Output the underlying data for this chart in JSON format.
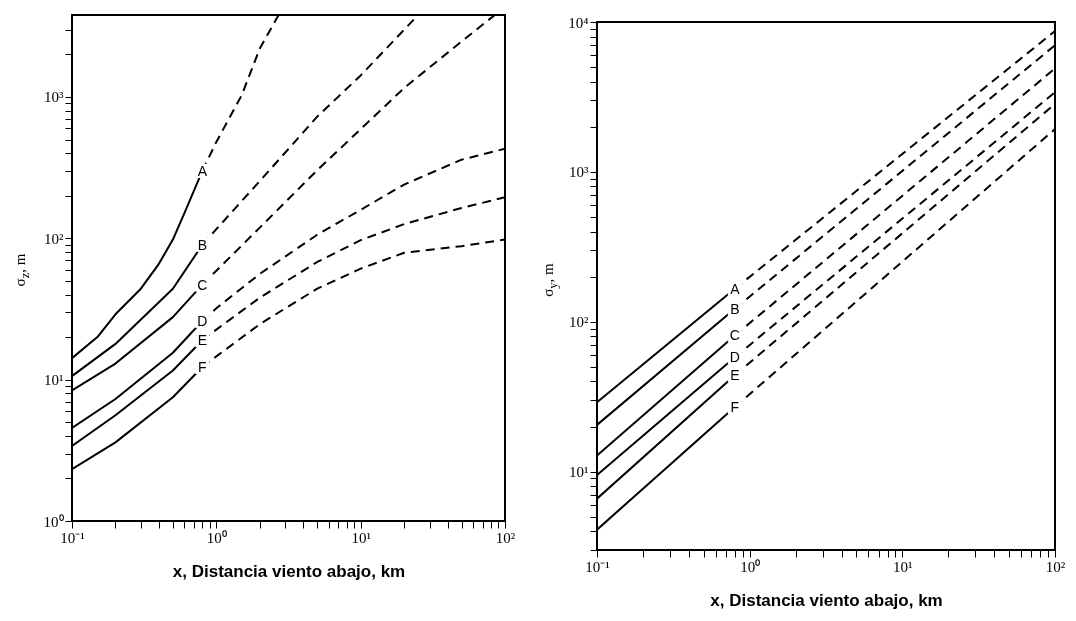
{
  "chart_data": [
    {
      "type": "line",
      "ylabel": "σ$_{z}$, m",
      "xlabel": "x, Distancia viento abajo, km",
      "log": "xy",
      "xlim": [
        0.1,
        100
      ],
      "ylim": [
        1,
        3800
      ],
      "xticks": [
        {
          "value": 0.1,
          "label": "10⁻¹"
        },
        {
          "value": 0.2,
          "label": null
        },
        {
          "value": 0.3,
          "label": null
        },
        {
          "value": 0.4,
          "label": null
        },
        {
          "value": 0.5,
          "label": null
        },
        {
          "value": 0.6,
          "label": null
        },
        {
          "value": 0.7,
          "label": null
        },
        {
          "value": 0.8,
          "label": null
        },
        {
          "value": 0.9,
          "label": null
        },
        {
          "value": 1,
          "label": "10⁰"
        },
        {
          "value": 2,
          "label": null
        },
        {
          "value": 3,
          "label": null
        },
        {
          "value": 4,
          "label": null
        },
        {
          "value": 5,
          "label": null
        },
        {
          "value": 6,
          "label": null
        },
        {
          "value": 7,
          "label": null
        },
        {
          "value": 8,
          "label": null
        },
        {
          "value": 9,
          "label": null
        },
        {
          "value": 10,
          "label": "10¹"
        },
        {
          "value": 20,
          "label": null
        },
        {
          "value": 30,
          "label": null
        },
        {
          "value": 40,
          "label": null
        },
        {
          "value": 50,
          "label": null
        },
        {
          "value": 60,
          "label": null
        },
        {
          "value": 70,
          "label": null
        },
        {
          "value": 80,
          "label": null
        },
        {
          "value": 90,
          "label": null
        },
        {
          "value": 100,
          "label": "10²"
        }
      ],
      "yticks": [
        {
          "value": 1,
          "label": "10⁰"
        },
        {
          "value": 2,
          "label": null
        },
        {
          "value": 3,
          "label": null
        },
        {
          "value": 4,
          "label": null
        },
        {
          "value": 5,
          "label": null
        },
        {
          "value": 6,
          "label": null
        },
        {
          "value": 7,
          "label": null
        },
        {
          "value": 8,
          "label": null
        },
        {
          "value": 9,
          "label": null
        },
        {
          "value": 10,
          "label": "10¹"
        },
        {
          "value": 20,
          "label": null
        },
        {
          "value": 30,
          "label": null
        },
        {
          "value": 40,
          "label": null
        },
        {
          "value": 50,
          "label": null
        },
        {
          "value": 60,
          "label": null
        },
        {
          "value": 70,
          "label": null
        },
        {
          "value": 80,
          "label": null
        },
        {
          "value": 90,
          "label": null
        },
        {
          "value": 100,
          "label": "10²"
        },
        {
          "value": 200,
          "label": null
        },
        {
          "value": 300,
          "label": null
        },
        {
          "value": 400,
          "label": null
        },
        {
          "value": 500,
          "label": null
        },
        {
          "value": 600,
          "label": null
        },
        {
          "value": 700,
          "label": null
        },
        {
          "value": 800,
          "label": null
        },
        {
          "value": 900,
          "label": null
        },
        {
          "value": 1000,
          "label": "10³"
        },
        {
          "value": 2000,
          "label": null
        },
        {
          "value": 3000,
          "label": null
        }
      ],
      "series": [
        {
          "color": "#000000",
          "line_style": "solid",
          "x": [
            0.1,
            0.15,
            0.2,
            0.3,
            0.4,
            0.5,
            0.6,
            0.8
          ],
          "values": [
            14.2,
            20,
            29,
            44,
            66,
            98,
            150,
            300
          ]
        },
        {
          "name": "A",
          "color": "#000000",
          "line_style": "dashed",
          "x": [
            0.8,
            1,
            1.5,
            2,
            2.7
          ],
          "values": [
            300,
            480,
            1030,
            2200,
            3800
          ]
        },
        {
          "color": "#000000",
          "line_style": "solid",
          "x": [
            0.1,
            0.2,
            0.5,
            0.8
          ],
          "values": [
            10.6,
            17.9,
            44,
            90
          ]
        },
        {
          "name": "B",
          "color": "#000000",
          "line_style": "dashed",
          "x": [
            0.8,
            1,
            2,
            5,
            10,
            25
          ],
          "values": [
            90,
            116,
            254,
            725,
            1420,
            3800
          ]
        },
        {
          "color": "#000000",
          "line_style": "solid",
          "x": [
            0.1,
            0.2,
            0.5,
            0.8
          ],
          "values": [
            8.4,
            13,
            27.7,
            47
          ]
        },
        {
          "name": "C",
          "color": "#000000",
          "line_style": "dashed",
          "x": [
            0.8,
            1,
            2,
            5,
            10,
            20,
            50,
            85
          ],
          "values": [
            47,
            59,
            119,
            303,
            592,
            1157,
            2470,
            3800
          ]
        },
        {
          "color": "#000000",
          "line_style": "solid",
          "x": [
            0.1,
            0.2,
            0.5,
            0.8
          ],
          "values": [
            4.55,
            7.3,
            15.5,
            26
          ]
        },
        {
          "name": "D",
          "color": "#000000",
          "line_style": "dashed",
          "x": [
            0.8,
            1,
            2,
            5,
            10,
            20,
            50,
            100
          ],
          "values": [
            26,
            32,
            56,
            106,
            159,
            240,
            360,
            430
          ]
        },
        {
          "color": "#000000",
          "line_style": "solid",
          "x": [
            0.1,
            0.2,
            0.5,
            0.8
          ],
          "values": [
            3.4,
            5.6,
            11.6,
            19
          ]
        },
        {
          "name": "E",
          "color": "#000000",
          "line_style": "dashed",
          "x": [
            0.8,
            1,
            2,
            5,
            10,
            20,
            50,
            100
          ],
          "values": [
            19,
            22.6,
            38,
            68,
            97,
            126,
            164,
            195
          ]
        },
        {
          "color": "#000000",
          "line_style": "solid",
          "x": [
            0.1,
            0.2,
            0.5,
            0.8
          ],
          "values": [
            2.33,
            3.6,
            7.5,
            12.3
          ]
        },
        {
          "name": "F",
          "color": "#000000",
          "line_style": "dashed",
          "x": [
            0.8,
            1,
            2,
            5,
            10,
            20,
            50,
            100
          ],
          "values": [
            12.3,
            14.6,
            24.7,
            44,
            61,
            79,
            88,
            98
          ]
        }
      ]
    },
    {
      "type": "line",
      "ylabel": "σ$_{y}$, m",
      "xlabel": "x, Distancia viento abajo, km",
      "log": "xy",
      "xlim": [
        0.1,
        100
      ],
      "ylim": [
        3,
        10000
      ],
      "xticks": [
        {
          "value": 0.1,
          "label": "10⁻¹"
        },
        {
          "value": 0.2,
          "label": null
        },
        {
          "value": 0.3,
          "label": null
        },
        {
          "value": 0.4,
          "label": null
        },
        {
          "value": 0.5,
          "label": null
        },
        {
          "value": 0.6,
          "label": null
        },
        {
          "value": 0.7,
          "label": null
        },
        {
          "value": 0.8,
          "label": null
        },
        {
          "value": 0.9,
          "label": null
        },
        {
          "value": 1,
          "label": "10⁰"
        },
        {
          "value": 2,
          "label": null
        },
        {
          "value": 3,
          "label": null
        },
        {
          "value": 4,
          "label": null
        },
        {
          "value": 5,
          "label": null
        },
        {
          "value": 6,
          "label": null
        },
        {
          "value": 7,
          "label": null
        },
        {
          "value": 8,
          "label": null
        },
        {
          "value": 9,
          "label": null
        },
        {
          "value": 10,
          "label": "10¹"
        },
        {
          "value": 20,
          "label": null
        },
        {
          "value": 30,
          "label": null
        },
        {
          "value": 40,
          "label": null
        },
        {
          "value": 50,
          "label": null
        },
        {
          "value": 60,
          "label": null
        },
        {
          "value": 70,
          "label": null
        },
        {
          "value": 80,
          "label": null
        },
        {
          "value": 90,
          "label": null
        },
        {
          "value": 100,
          "label": "10²"
        }
      ],
      "yticks": [
        {
          "value": 3,
          "label": null
        },
        {
          "value": 4,
          "label": null
        },
        {
          "value": 5,
          "label": null
        },
        {
          "value": 6,
          "label": null
        },
        {
          "value": 7,
          "label": null
        },
        {
          "value": 8,
          "label": null
        },
        {
          "value": 9,
          "label": null
        },
        {
          "value": 10,
          "label": "10¹"
        },
        {
          "value": 20,
          "label": null
        },
        {
          "value": 30,
          "label": null
        },
        {
          "value": 40,
          "label": null
        },
        {
          "value": 50,
          "label": null
        },
        {
          "value": 60,
          "label": null
        },
        {
          "value": 70,
          "label": null
        },
        {
          "value": 80,
          "label": null
        },
        {
          "value": 90,
          "label": null
        },
        {
          "value": 100,
          "label": "10²"
        },
        {
          "value": 200,
          "label": null
        },
        {
          "value": 300,
          "label": null
        },
        {
          "value": 400,
          "label": null
        },
        {
          "value": 500,
          "label": null
        },
        {
          "value": 600,
          "label": null
        },
        {
          "value": 700,
          "label": null
        },
        {
          "value": 800,
          "label": null
        },
        {
          "value": 900,
          "label": null
        },
        {
          "value": 1000,
          "label": "10³"
        },
        {
          "value": 2000,
          "label": null
        },
        {
          "value": 3000,
          "label": null
        },
        {
          "value": 4000,
          "label": null
        },
        {
          "value": 5000,
          "label": null
        },
        {
          "value": 6000,
          "label": null
        },
        {
          "value": 7000,
          "label": null
        },
        {
          "value": 8000,
          "label": null
        },
        {
          "value": 9000,
          "label": null
        },
        {
          "value": 10000,
          "label": "10⁴"
        }
      ],
      "series": [
        {
          "color": "#000000",
          "line_style": "solid",
          "x": [
            0.1,
            0.8
          ],
          "values": [
            29,
            166
          ]
        },
        {
          "name": "A",
          "color": "#000000",
          "line_style": "dashed",
          "x": [
            0.8,
            100
          ],
          "values": [
            166,
            8700
          ]
        },
        {
          "color": "#000000",
          "line_style": "solid",
          "x": [
            0.1,
            0.8
          ],
          "values": [
            20.5,
            122
          ]
        },
        {
          "name": "B",
          "color": "#000000",
          "line_style": "dashed",
          "x": [
            0.8,
            100
          ],
          "values": [
            122,
            7000
          ]
        },
        {
          "color": "#000000",
          "line_style": "solid",
          "x": [
            0.1,
            0.8
          ],
          "values": [
            12.8,
            81
          ]
        },
        {
          "name": "C",
          "color": "#000000",
          "line_style": "dashed",
          "x": [
            0.8,
            100
          ],
          "values": [
            81,
            4900
          ]
        },
        {
          "color": "#000000",
          "line_style": "solid",
          "x": [
            0.1,
            0.8
          ],
          "values": [
            9.5,
            58
          ]
        },
        {
          "name": "D",
          "color": "#000000",
          "line_style": "dashed",
          "x": [
            0.8,
            100
          ],
          "values": [
            58,
            3400
          ]
        },
        {
          "color": "#000000",
          "line_style": "solid",
          "x": [
            0.1,
            0.8
          ],
          "values": [
            6.6,
            44
          ]
        },
        {
          "name": "E",
          "color": "#000000",
          "line_style": "dashed",
          "x": [
            0.8,
            100
          ],
          "values": [
            44,
            2840
          ]
        },
        {
          "color": "#000000",
          "line_style": "solid",
          "x": [
            0.1,
            0.8
          ],
          "values": [
            4.1,
            27
          ]
        },
        {
          "name": "F",
          "color": "#000000",
          "line_style": "dashed",
          "x": [
            0.8,
            100
          ],
          "values": [
            27,
            1930
          ]
        }
      ]
    }
  ]
}
